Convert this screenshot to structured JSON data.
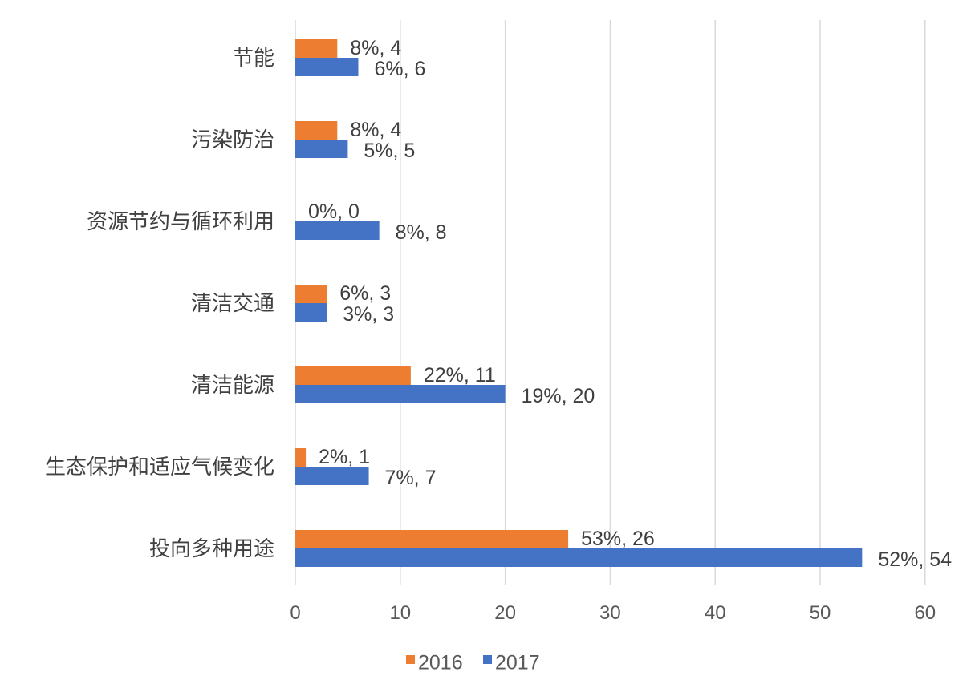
{
  "chart_data": {
    "type": "bar",
    "orientation": "horizontal",
    "categories": [
      "节能",
      "污染防治",
      "资源节约与循环利用",
      "清洁交通",
      "清洁能源",
      "生态保护和适应气候变化",
      "投向多种用途"
    ],
    "series": [
      {
        "name": "2016",
        "color": "#ed7d31",
        "values": [
          4,
          4,
          0,
          3,
          11,
          1,
          26
        ],
        "labels": [
          "8%, 4",
          "8%, 4",
          "0%, 0",
          "6%, 3",
          "22%, 11",
          "2%, 1",
          "53%, 26"
        ]
      },
      {
        "name": "2017",
        "color": "#4472c4",
        "values": [
          6,
          5,
          8,
          3,
          20,
          7,
          54
        ],
        "labels": [
          "6%, 6",
          "5%, 5",
          "8%, 8",
          "3%, 3",
          "19%, 20",
          "7%, 7",
          "52%, 54"
        ]
      }
    ],
    "xlim": [
      0,
      60
    ],
    "xticks": [
      "0",
      "10",
      "20",
      "30",
      "40",
      "50",
      "60"
    ],
    "grid": "vertical",
    "legend": "bottom-center",
    "title": "",
    "xlabel": "",
    "ylabel": ""
  }
}
